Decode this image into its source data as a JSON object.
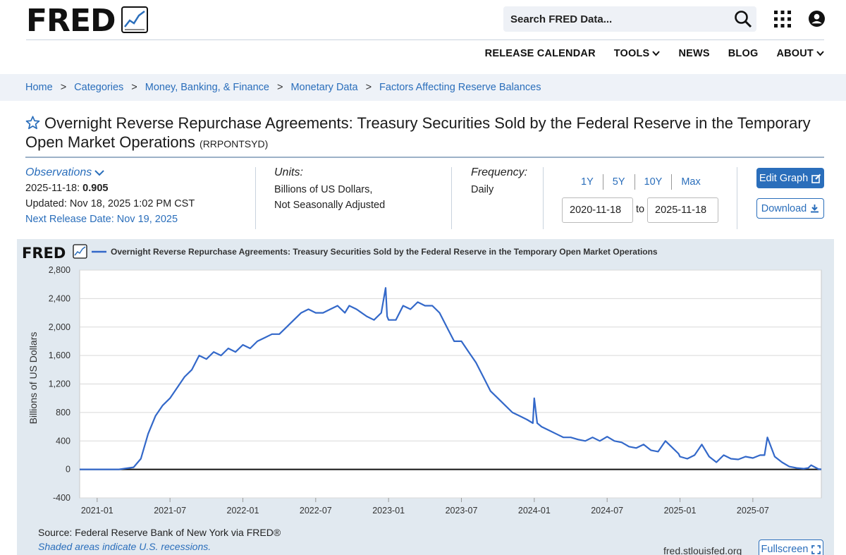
{
  "header": {
    "logo_text": "FRED",
    "search_placeholder": "Search FRED Data...",
    "nav": [
      {
        "label": "RELEASE CALENDAR"
      },
      {
        "label": "TOOLS"
      },
      {
        "label": "NEWS"
      },
      {
        "label": "BLOG"
      },
      {
        "label": "ABOUT"
      }
    ]
  },
  "breadcrumb": [
    "Home",
    "Categories",
    "Money, Banking, & Finance",
    "Monetary Data",
    "Factors Affecting Reserve Balances"
  ],
  "breadcrumb_sep": ">",
  "series": {
    "title": "Overnight Reverse Repurchase Agreements: Treasury Securities Sold by the Federal Reserve in the Temporary Open Market Operations",
    "id": "(RRPONTSYD)"
  },
  "observations": {
    "label": "Observations",
    "date": "2025-11-18:",
    "value": "0.905",
    "updated": "Updated: Nov 18, 2025 1:02 PM CST",
    "next_release": "Next Release Date: Nov 19, 2025"
  },
  "units": {
    "label": "Units:",
    "line1": "Billions of US Dollars,",
    "line2": "Not Seasonally Adjusted"
  },
  "frequency": {
    "label": "Frequency:",
    "value": "Daily"
  },
  "ranges": [
    "1Y",
    "5Y",
    "10Y",
    "Max"
  ],
  "date_range": {
    "start": "2020-11-18",
    "to": "to",
    "end": "2025-11-18"
  },
  "buttons": {
    "edit": "Edit Graph",
    "download": "Download",
    "fullscreen": "Fullscreen"
  },
  "chart_footer": {
    "source": "Source: Federal Reserve Bank of New York via FRED®",
    "note": "Shaded areas indicate U.S. recessions.",
    "site": "fred.stlouisfed.org"
  },
  "colors": {
    "accent": "#2a6ebb",
    "line": "#3368c9",
    "plot_bg": "#ffffff",
    "panel_bg": "#e1e9f0"
  },
  "chart_data": {
    "type": "line",
    "title": "Overnight Reverse Repurchase Agreements: Treasury Securities Sold by the Federal Reserve in the Temporary Open Market Operations",
    "logo": "FRED",
    "ylabel": "Billions of US Dollars",
    "xlabel": "",
    "ylim": [
      -400,
      2800
    ],
    "yticks": [
      2800,
      2400,
      2000,
      1600,
      1200,
      800,
      400,
      0,
      -400
    ],
    "ytick_labels": [
      "2,800",
      "2,400",
      "2,000",
      "1,600",
      "1,200",
      "800",
      "400",
      "0",
      "-400"
    ],
    "xlim": [
      2020.88,
      2025.97
    ],
    "xticks": [
      2021.0,
      2021.5,
      2022.0,
      2022.5,
      2023.0,
      2023.5,
      2024.0,
      2024.5,
      2025.0,
      2025.5
    ],
    "xtick_labels": [
      "2021-01",
      "2021-07",
      "2022-01",
      "2022-07",
      "2023-01",
      "2023-07",
      "2024-01",
      "2024-07",
      "2025-01",
      "2025-07"
    ],
    "series": [
      {
        "name": "RRPONTSYD",
        "x": [
          2020.88,
          2021.0,
          2021.15,
          2021.25,
          2021.3,
          2021.35,
          2021.4,
          2021.45,
          2021.5,
          2021.55,
          2021.6,
          2021.65,
          2021.7,
          2021.75,
          2021.8,
          2021.85,
          2021.9,
          2021.95,
          2022.0,
          2022.05,
          2022.1,
          2022.15,
          2022.2,
          2022.25,
          2022.3,
          2022.35,
          2022.4,
          2022.45,
          2022.5,
          2022.55,
          2022.6,
          2022.65,
          2022.7,
          2022.73,
          2022.78,
          2022.85,
          2022.9,
          2022.95,
          2022.98,
          2022.99,
          2023.0,
          2023.05,
          2023.1,
          2023.15,
          2023.2,
          2023.25,
          2023.3,
          2023.35,
          2023.4,
          2023.45,
          2023.5,
          2023.55,
          2023.6,
          2023.65,
          2023.7,
          2023.75,
          2023.8,
          2023.85,
          2023.9,
          2023.95,
          2023.99,
          2024.0,
          2024.02,
          2024.05,
          2024.1,
          2024.15,
          2024.2,
          2024.25,
          2024.3,
          2024.35,
          2024.4,
          2024.45,
          2024.5,
          2024.55,
          2024.6,
          2024.65,
          2024.7,
          2024.75,
          2024.8,
          2024.85,
          2024.9,
          2024.95,
          2024.99,
          2025.0,
          2025.05,
          2025.1,
          2025.15,
          2025.2,
          2025.25,
          2025.3,
          2025.35,
          2025.4,
          2025.45,
          2025.5,
          2025.55,
          2025.58,
          2025.6,
          2025.65,
          2025.7,
          2025.75,
          2025.8,
          2025.85,
          2025.88,
          2025.9,
          2025.95,
          2025.97
        ],
        "values": [
          0,
          0,
          0,
          30,
          150,
          500,
          750,
          900,
          1000,
          1150,
          1300,
          1400,
          1600,
          1550,
          1650,
          1600,
          1700,
          1650,
          1750,
          1700,
          1800,
          1850,
          1900,
          1900,
          2000,
          2100,
          2200,
          2250,
          2200,
          2200,
          2250,
          2300,
          2200,
          2300,
          2250,
          2150,
          2100,
          2200,
          2550,
          2150,
          2100,
          2100,
          2300,
          2250,
          2350,
          2300,
          2300,
          2200,
          2000,
          1800,
          1800,
          1650,
          1500,
          1300,
          1100,
          1000,
          900,
          800,
          750,
          700,
          650,
          1000,
          650,
          600,
          550,
          500,
          450,
          450,
          420,
          400,
          450,
          400,
          460,
          400,
          380,
          320,
          300,
          350,
          270,
          250,
          400,
          300,
          220,
          180,
          150,
          200,
          350,
          180,
          100,
          200,
          150,
          140,
          180,
          160,
          200,
          200,
          450,
          180,
          100,
          40,
          20,
          10,
          20,
          60,
          5,
          1
        ]
      }
    ]
  }
}
